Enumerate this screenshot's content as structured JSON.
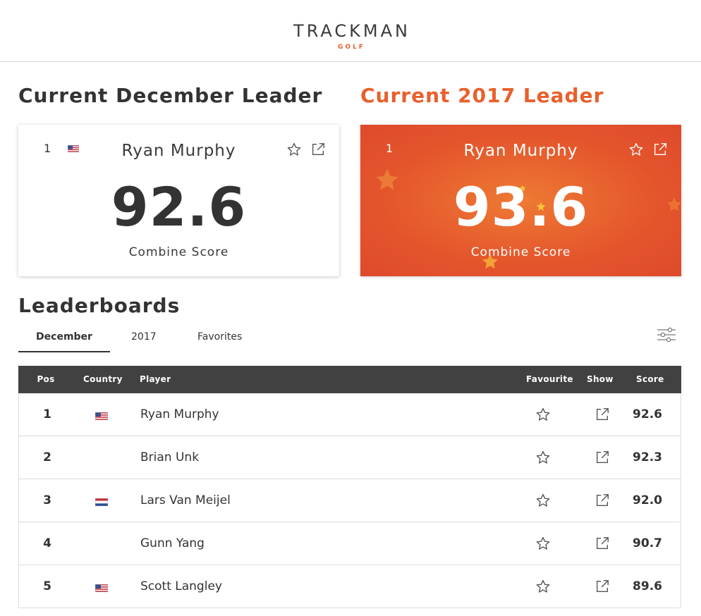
{
  "header": {
    "logo": "TRACKMAN",
    "logo_sub": "GOLF",
    "brand_color": "#e8602c"
  },
  "month_leader": {
    "title": "Current December Leader",
    "pos": "1",
    "country": "US",
    "name": "Ryan Murphy",
    "score": "92.6",
    "score_label": "Combine Score"
  },
  "year_leader": {
    "title": "Current 2017 Leader",
    "pos": "1",
    "name": "Ryan Murphy",
    "score": "93.6",
    "score_label": "Combine Score"
  },
  "leaderboards": {
    "title": "Leaderboards",
    "tabs": [
      {
        "label": "December",
        "active": true
      },
      {
        "label": "2017",
        "active": false
      },
      {
        "label": "Favorites",
        "active": false
      }
    ],
    "columns": {
      "pos": "Pos",
      "country": "Country",
      "player": "Player",
      "favourite": "Favourite",
      "show": "Show",
      "score": "Score"
    },
    "rows": [
      {
        "pos": "1",
        "country": "US",
        "player": "Ryan Murphy",
        "score": "92.6"
      },
      {
        "pos": "2",
        "country": "",
        "player": "Brian Unk",
        "score": "92.3"
      },
      {
        "pos": "3",
        "country": "NL",
        "player": "Lars Van Meijel",
        "score": "92.0"
      },
      {
        "pos": "4",
        "country": "",
        "player": "Gunn Yang",
        "score": "90.7"
      },
      {
        "pos": "5",
        "country": "US",
        "player": "Scott Langley",
        "score": "89.6"
      }
    ]
  },
  "icons": {
    "favourite": "star-icon",
    "show": "external-link-icon",
    "filter": "sliders-icon",
    "flag_us": "us-flag-icon",
    "flag_nl": "nl-flag-icon"
  }
}
